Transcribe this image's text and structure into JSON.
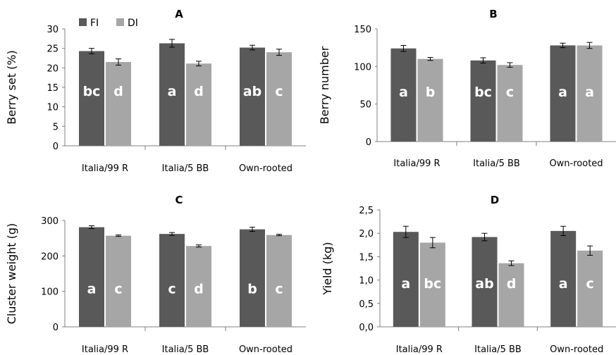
{
  "colors": {
    "FI": "#595959",
    "DI": "#a6a6a6",
    "axis": "#808080",
    "letters": "#ffffff"
  },
  "legend": {
    "placement": "top-left",
    "entries": [
      {
        "name": "FI"
      },
      {
        "name": "DI"
      }
    ]
  },
  "chart_data": [
    {
      "id": "A",
      "type": "bar",
      "title": "A",
      "ylabel": "Berry set (%)",
      "categories": [
        "Italia/99 R",
        "Italia/5 BB",
        "Own-rooted"
      ],
      "ylim": [
        0,
        30
      ],
      "yticks": [
        0,
        5,
        10,
        15,
        20,
        25,
        30
      ],
      "decimal_comma": false,
      "series": [
        {
          "name": "FI",
          "values": [
            24.3,
            26.3,
            25.2
          ],
          "errors": [
            0.7,
            1.0,
            0.6
          ],
          "letters": [
            "bc",
            "a",
            "ab"
          ]
        },
        {
          "name": "DI",
          "values": [
            21.5,
            21.1,
            24.0
          ],
          "errors": [
            0.8,
            0.6,
            0.8
          ],
          "letters": [
            "d",
            "d",
            "c"
          ]
        }
      ]
    },
    {
      "id": "B",
      "type": "bar",
      "title": "B",
      "ylabel": "Berry number",
      "categories": [
        "Italia/99 R",
        "Italia/5 BB",
        "Own-rooted"
      ],
      "ylim": [
        0,
        150
      ],
      "yticks": [
        0,
        50,
        100,
        150
      ],
      "decimal_comma": false,
      "series": [
        {
          "name": "FI",
          "values": [
            124,
            108,
            128
          ],
          "errors": [
            4,
            3.5,
            3
          ],
          "letters": [
            "a",
            "bc",
            "a"
          ]
        },
        {
          "name": "DI",
          "values": [
            110,
            102,
            128
          ],
          "errors": [
            2,
            3,
            4
          ],
          "letters": [
            "b",
            "c",
            "a"
          ]
        }
      ]
    },
    {
      "id": "C",
      "type": "bar",
      "title": "C",
      "ylabel": "Cluster weight (g)",
      "categories": [
        "Italia/99 R",
        "Italia/5 BB",
        "Own-rooted"
      ],
      "ylim": [
        0,
        300
      ],
      "yticks": [
        0,
        100,
        200,
        300
      ],
      "decimal_comma": false,
      "series": [
        {
          "name": "FI",
          "values": [
            281,
            262,
            275
          ],
          "errors": [
            4,
            4,
            6
          ],
          "letters": [
            "a",
            "c",
            "b"
          ]
        },
        {
          "name": "DI",
          "values": [
            257,
            228,
            259
          ],
          "errors": [
            2,
            3,
            2
          ],
          "letters": [
            "c",
            "d",
            "c"
          ]
        }
      ]
    },
    {
      "id": "D",
      "type": "bar",
      "title": "D",
      "ylabel": "Yield (kg)",
      "categories": [
        "Italia/99 R",
        "Italia/5 BB",
        "Own-rooted"
      ],
      "ylim": [
        0,
        2.5
      ],
      "yticks": [
        0,
        0.5,
        1.0,
        1.5,
        2.0,
        2.5
      ],
      "decimal_comma": true,
      "series": [
        {
          "name": "FI",
          "values": [
            2.03,
            1.92,
            2.05
          ],
          "errors": [
            0.12,
            0.08,
            0.1
          ],
          "letters": [
            "a",
            "ab",
            "a"
          ]
        },
        {
          "name": "DI",
          "values": [
            1.8,
            1.36,
            1.63
          ],
          "errors": [
            0.11,
            0.05,
            0.1
          ],
          "letters": [
            "bc",
            "d",
            "c"
          ]
        }
      ]
    }
  ]
}
